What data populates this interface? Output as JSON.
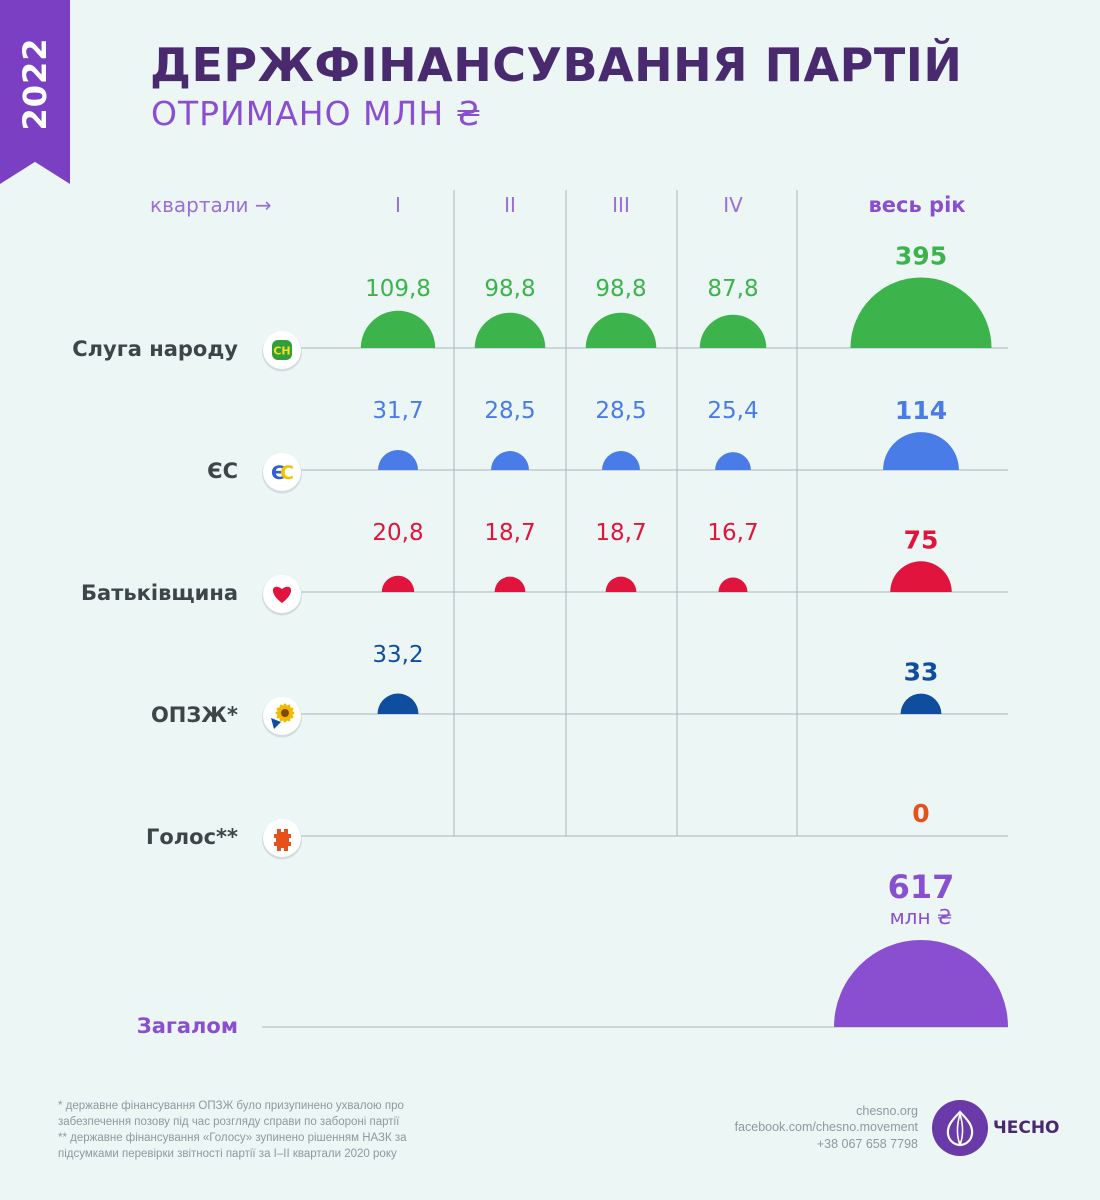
{
  "header": {
    "year": "2022",
    "title": "ДЕРЖФІНАНСУВАННЯ ПАРТІЙ",
    "subtitle": "ОТРИМАНО МЛН ₴"
  },
  "chart_data": {
    "type": "table",
    "title": "ДЕРЖФІНАНСУВАННЯ ПАРТІЙ",
    "subtitle": "ОТРИМАНО МЛН ₴",
    "column_header_label": "квартали →",
    "categories": [
      "I",
      "II",
      "III",
      "IV"
    ],
    "total_column_label": "весь рік",
    "series": [
      {
        "name": "Слуга народу",
        "color": "#3cb44b",
        "icon": "sluha-narodu-logo-icon",
        "icon_text": "СН",
        "values": [
          109.8,
          98.8,
          98.8,
          87.8
        ],
        "labels": [
          "109,8",
          "98,8",
          "98,8",
          "87,8"
        ],
        "total": 395,
        "total_label": "395"
      },
      {
        "name": "ЄС",
        "color": "#4a7ce8",
        "icon": "yes-logo-icon",
        "icon_text": "ЄС",
        "values": [
          31.7,
          28.5,
          28.5,
          25.4
        ],
        "labels": [
          "31,7",
          "28,5",
          "28,5",
          "25,4"
        ],
        "total": 114,
        "total_label": "114"
      },
      {
        "name": "Батьківщина",
        "color": "#e0143c",
        "icon": "heart-icon",
        "icon_text": "",
        "values": [
          20.8,
          18.7,
          18.7,
          16.7
        ],
        "labels": [
          "20,8",
          "18,7",
          "18,7",
          "16,7"
        ],
        "total": 75,
        "total_label": "75"
      },
      {
        "name": "ОПЗЖ*",
        "color": "#0f4e9e",
        "icon": "sunflower-icon",
        "icon_text": "",
        "values": [
          33.2,
          null,
          null,
          null
        ],
        "labels": [
          "33,2",
          "",
          "",
          ""
        ],
        "total": 33,
        "total_label": "33"
      },
      {
        "name": "Голос**",
        "color": "#e8501a",
        "icon": "holos-logo-icon",
        "icon_text": "",
        "values": [
          null,
          null,
          null,
          null
        ],
        "labels": [
          "",
          "",
          "",
          ""
        ],
        "total": 0,
        "total_label": "0"
      }
    ],
    "grand_total": {
      "label": "Загалом",
      "value": 617,
      "value_label": "617",
      "unit": "млн ₴",
      "color": "#8a4fd0"
    },
    "encoding": "semicircle area proportional to value",
    "grid": true
  },
  "footnotes": [
    "* державне фінансування ОПЗЖ було призупинено ухвалою про забезпечення позову під час розгляду справи по забороні партії",
    "** державне фінансування «Голосу» зупинено рішенням НАЗК за підсумками перевірки звітності партії за І–ІІ квартали 2020 року"
  ],
  "contacts": {
    "site": "chesno.org",
    "facebook": "facebook.com/chesno.movement",
    "phone": "+38 067 658 7798"
  },
  "brand": {
    "name": "ЧЕСНО",
    "color": "#6a3aa9"
  }
}
